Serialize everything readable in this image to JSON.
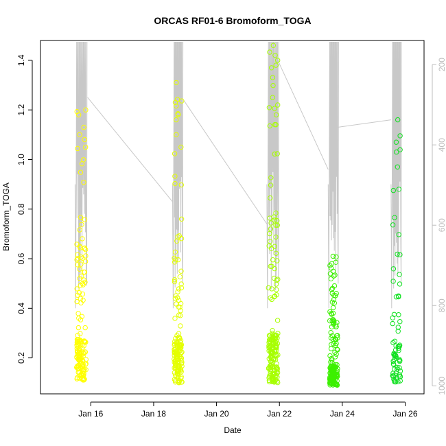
{
  "chart_data": {
    "type": "scatter",
    "title": "ORCAS RF01-6 Bromoform_TOGA",
    "xlabel": "Date",
    "ylabel": "Bromoform_TOGA",
    "x_ticks": [
      "Jan 16",
      "Jan 18",
      "Jan 20",
      "Jan 22",
      "Jan 24",
      "Jan 26"
    ],
    "x_tick_days": [
      16,
      18,
      20,
      22,
      24,
      26
    ],
    "xlim_days": [
      14.4,
      26.6
    ],
    "ylim": [
      0.055,
      1.48
    ],
    "y_ticks": [
      0.2,
      0.4,
      0.6,
      0.8,
      1.0,
      1.2,
      1.4
    ],
    "y_tick_labels": [
      "0.2",
      "0.4",
      "0.6",
      "0.8",
      "1.0",
      "1.2",
      "1.4"
    ],
    "y2_axis": {
      "ticks": [
        200,
        400,
        600,
        800,
        1000
      ],
      "tick_labels": [
        "200",
        "400",
        "600",
        "800",
        "1000"
      ],
      "range_top_bottom": [
        140,
        1020
      ],
      "color": "#bdbdbd"
    },
    "grid": false,
    "legend": "none",
    "flights": [
      {
        "day_start": 15.55,
        "day_end": 15.85,
        "color": "#ffff00",
        "y_min": 0.11,
        "y_max": 1.21,
        "n": 150,
        "seed": 11,
        "outliers": [
          1.13,
          1.1,
          1.05,
          1.18,
          1.2
        ]
      },
      {
        "day_start": 18.65,
        "day_end": 18.9,
        "color": "#e4ff00",
        "y_min": 0.1,
        "y_max": 1.31,
        "n": 150,
        "seed": 23,
        "outliers": [
          1.31,
          1.16,
          1.1,
          1.05
        ]
      },
      {
        "day_start": 21.65,
        "day_end": 21.95,
        "color": "#a6ff00",
        "y_min": 0.1,
        "y_max": 1.46,
        "n": 180,
        "seed": 37,
        "outliers": [
          1.46,
          1.42,
          1.4,
          1.38,
          1.25,
          1.22
        ]
      },
      {
        "day_start": 23.6,
        "day_end": 23.85,
        "color": "#3cf000",
        "y_min": 0.09,
        "y_max": 0.61,
        "n": 170,
        "seed": 51,
        "outliers": [
          0.61,
          0.58,
          0.53,
          0.46
        ]
      },
      {
        "day_start": 25.6,
        "day_end": 25.85,
        "color": "#10e020",
        "y_min": 0.1,
        "y_max": 1.16,
        "n": 70,
        "seed": 67,
        "outliers": [
          1.16,
          1.07,
          1.03,
          0.97,
          0.88
        ]
      }
    ],
    "altitude_trace": {
      "color": "#c8c8c8",
      "transits": [
        {
          "from": [
            15.9,
            1.25
          ],
          "to": [
            18.6,
            0.83
          ]
        },
        {
          "from": [
            18.95,
            1.24
          ],
          "to": [
            21.6,
            0.74
          ]
        },
        {
          "from": [
            21.95,
            1.4
          ],
          "to": [
            23.55,
            0.96
          ]
        },
        {
          "from": [
            23.85,
            1.13
          ],
          "to": [
            25.55,
            1.16
          ]
        }
      ]
    }
  }
}
